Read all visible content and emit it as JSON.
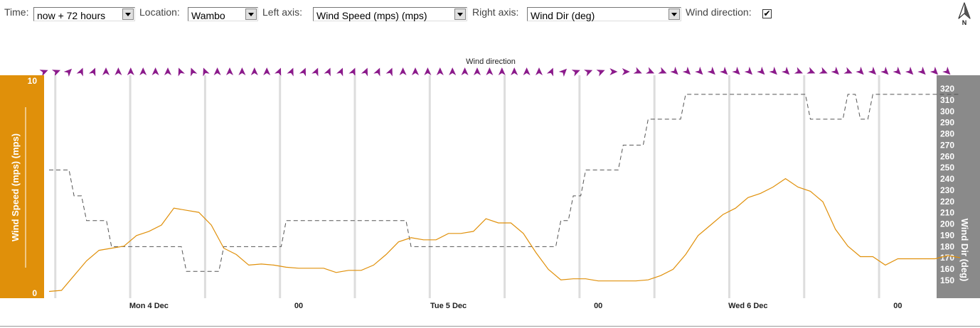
{
  "toolbar": {
    "time_label": "Time:",
    "time_value": "now + 72 hours",
    "location_label": "Location:",
    "location_value": "Wambo",
    "left_axis_label": "Left axis:",
    "left_axis_value": "Wind Speed (mps) (mps)",
    "right_axis_label": "Right axis:",
    "right_axis_value": "Wind Dir (deg)",
    "wind_direction_label": "Wind direction:",
    "wind_direction_checked": "✔",
    "north_label": "N"
  },
  "colors": {
    "wind_speed": "#e0900a",
    "wind_dir": "#555555",
    "left_axis_bg": "#e0900a",
    "right_axis_bg": "#8a8a8a",
    "arrow": "#8b1a8b",
    "gridline": "#dddddd"
  },
  "chart_data": {
    "type": "line",
    "title": "Wind direction",
    "x_unit": "hours from start",
    "x_range": [
      0,
      72
    ],
    "x_tick_labels": [
      {
        "x": 8,
        "label": "Mon 4 Dec"
      },
      {
        "x": 20,
        "label": "00"
      },
      {
        "x": 32,
        "label": "Tue 5 Dec"
      },
      {
        "x": 44,
        "label": "00"
      },
      {
        "x": 56,
        "label": "Wed 6 Dec"
      },
      {
        "x": 68,
        "label": "00"
      }
    ],
    "left_axis": {
      "label": "Wind Speed (mps) (mps)",
      "display_label": "Wind Speed (mps) (mps)",
      "ylim": [
        0,
        10
      ],
      "ticks": [
        0,
        10
      ]
    },
    "right_axis": {
      "label": "Wind Dir (deg)",
      "ylim": [
        147,
        322
      ],
      "ticks": [
        150,
        160,
        170,
        180,
        190,
        200,
        210,
        220,
        230,
        240,
        250,
        260,
        270,
        280,
        290,
        300,
        310,
        320
      ]
    },
    "series": [
      {
        "name": "Wind Speed (mps)",
        "axis": "left",
        "style": "solid",
        "points": [
          [
            0,
            0.05
          ],
          [
            1,
            0.1
          ],
          [
            2,
            0.8
          ],
          [
            3,
            1.5
          ],
          [
            4,
            2.0
          ],
          [
            5,
            2.1
          ],
          [
            6,
            2.2
          ],
          [
            7,
            2.7
          ],
          [
            8,
            2.9
          ],
          [
            9,
            3.2
          ],
          [
            10,
            4.0
          ],
          [
            11,
            3.9
          ],
          [
            12,
            3.8
          ],
          [
            13,
            3.2
          ],
          [
            14,
            2.1
          ],
          [
            15,
            1.8
          ],
          [
            16,
            1.3
          ],
          [
            17,
            1.35
          ],
          [
            18,
            1.3
          ],
          [
            19,
            1.2
          ],
          [
            20,
            1.15
          ],
          [
            21,
            1.15
          ],
          [
            22,
            1.15
          ],
          [
            23,
            0.95
          ],
          [
            24,
            1.05
          ],
          [
            25,
            1.05
          ],
          [
            26,
            1.3
          ],
          [
            27,
            1.8
          ],
          [
            28,
            2.4
          ],
          [
            29,
            2.6
          ],
          [
            30,
            2.5
          ],
          [
            31,
            2.5
          ],
          [
            32,
            2.8
          ],
          [
            33,
            2.8
          ],
          [
            34,
            2.9
          ],
          [
            35,
            3.5
          ],
          [
            36,
            3.3
          ],
          [
            37,
            3.3
          ],
          [
            38,
            2.8
          ],
          [
            39,
            1.9
          ],
          [
            40,
            1.1
          ],
          [
            41,
            0.6
          ],
          [
            42,
            0.65
          ],
          [
            43,
            0.65
          ],
          [
            44,
            0.55
          ],
          [
            45,
            0.55
          ],
          [
            46,
            0.55
          ],
          [
            47,
            0.55
          ],
          [
            48,
            0.6
          ],
          [
            49,
            0.8
          ],
          [
            50,
            1.1
          ],
          [
            51,
            1.8
          ],
          [
            52,
            2.7
          ],
          [
            53,
            3.2
          ],
          [
            54,
            3.7
          ],
          [
            55,
            4.0
          ],
          [
            56,
            4.5
          ],
          [
            57,
            4.7
          ],
          [
            58,
            5.0
          ],
          [
            59,
            5.4
          ],
          [
            60,
            5.0
          ],
          [
            61,
            4.8
          ],
          [
            62,
            4.3
          ],
          [
            63,
            3.0
          ],
          [
            64,
            2.2
          ],
          [
            65,
            1.7
          ],
          [
            66,
            1.7
          ],
          [
            67,
            1.3
          ],
          [
            68,
            1.6
          ],
          [
            69,
            1.6
          ],
          [
            70,
            1.6
          ],
          [
            71,
            1.6
          ],
          [
            72,
            1.75
          ],
          [
            73,
            1.65
          ]
        ]
      },
      {
        "name": "Wind Dir (deg)",
        "axis": "right",
        "style": "dashed",
        "points": [
          [
            0,
            248
          ],
          [
            1,
            248
          ],
          [
            2,
            225
          ],
          [
            3,
            203
          ],
          [
            4,
            203
          ],
          [
            5,
            180
          ],
          [
            6,
            180
          ],
          [
            7,
            180
          ],
          [
            8,
            180
          ],
          [
            9,
            180
          ],
          [
            10,
            180
          ],
          [
            11,
            158
          ],
          [
            12,
            158
          ],
          [
            13,
            158
          ],
          [
            14,
            180
          ],
          [
            15,
            180
          ],
          [
            16,
            180
          ],
          [
            17,
            180
          ],
          [
            18,
            180
          ],
          [
            19,
            203
          ],
          [
            20,
            203
          ],
          [
            21,
            203
          ],
          [
            22,
            203
          ],
          [
            23,
            203
          ],
          [
            24,
            203
          ],
          [
            25,
            203
          ],
          [
            26,
            203
          ],
          [
            27,
            203
          ],
          [
            28,
            203
          ],
          [
            29,
            180
          ],
          [
            30,
            180
          ],
          [
            31,
            180
          ],
          [
            32,
            180
          ],
          [
            33,
            180
          ],
          [
            34,
            180
          ],
          [
            35,
            180
          ],
          [
            36,
            180
          ],
          [
            37,
            180
          ],
          [
            38,
            180
          ],
          [
            39,
            180
          ],
          [
            40,
            180
          ],
          [
            41,
            203
          ],
          [
            42,
            225
          ],
          [
            43,
            248
          ],
          [
            44,
            248
          ],
          [
            45,
            248
          ],
          [
            46,
            270
          ],
          [
            47,
            270
          ],
          [
            48,
            293
          ],
          [
            49,
            293
          ],
          [
            50,
            293
          ],
          [
            51,
            315
          ],
          [
            52,
            315
          ],
          [
            53,
            315
          ],
          [
            54,
            315
          ],
          [
            55,
            315
          ],
          [
            56,
            315
          ],
          [
            57,
            315
          ],
          [
            58,
            315
          ],
          [
            59,
            315
          ],
          [
            60,
            315
          ],
          [
            61,
            293
          ],
          [
            62,
            293
          ],
          [
            63,
            293
          ],
          [
            64,
            315
          ],
          [
            65,
            293
          ],
          [
            66,
            315
          ],
          [
            67,
            315
          ],
          [
            68,
            315
          ],
          [
            69,
            315
          ],
          [
            70,
            315
          ],
          [
            71,
            315
          ],
          [
            72,
            315
          ],
          [
            73,
            315
          ]
        ]
      }
    ],
    "direction_arrows_deg": [
      248,
      248,
      225,
      203,
      203,
      180,
      180,
      180,
      180,
      180,
      180,
      158,
      158,
      158,
      180,
      180,
      180,
      180,
      180,
      203,
      203,
      203,
      203,
      203,
      203,
      203,
      203,
      203,
      203,
      180,
      180,
      180,
      180,
      180,
      180,
      180,
      180,
      180,
      180,
      180,
      180,
      203,
      225,
      248,
      248,
      248,
      270,
      270,
      293,
      293,
      293,
      315,
      315,
      315,
      315,
      315,
      315,
      315,
      315,
      315,
      315,
      293,
      293,
      293,
      315,
      293,
      315,
      315,
      315,
      315,
      315,
      315,
      315,
      315
    ],
    "legend": "none"
  }
}
